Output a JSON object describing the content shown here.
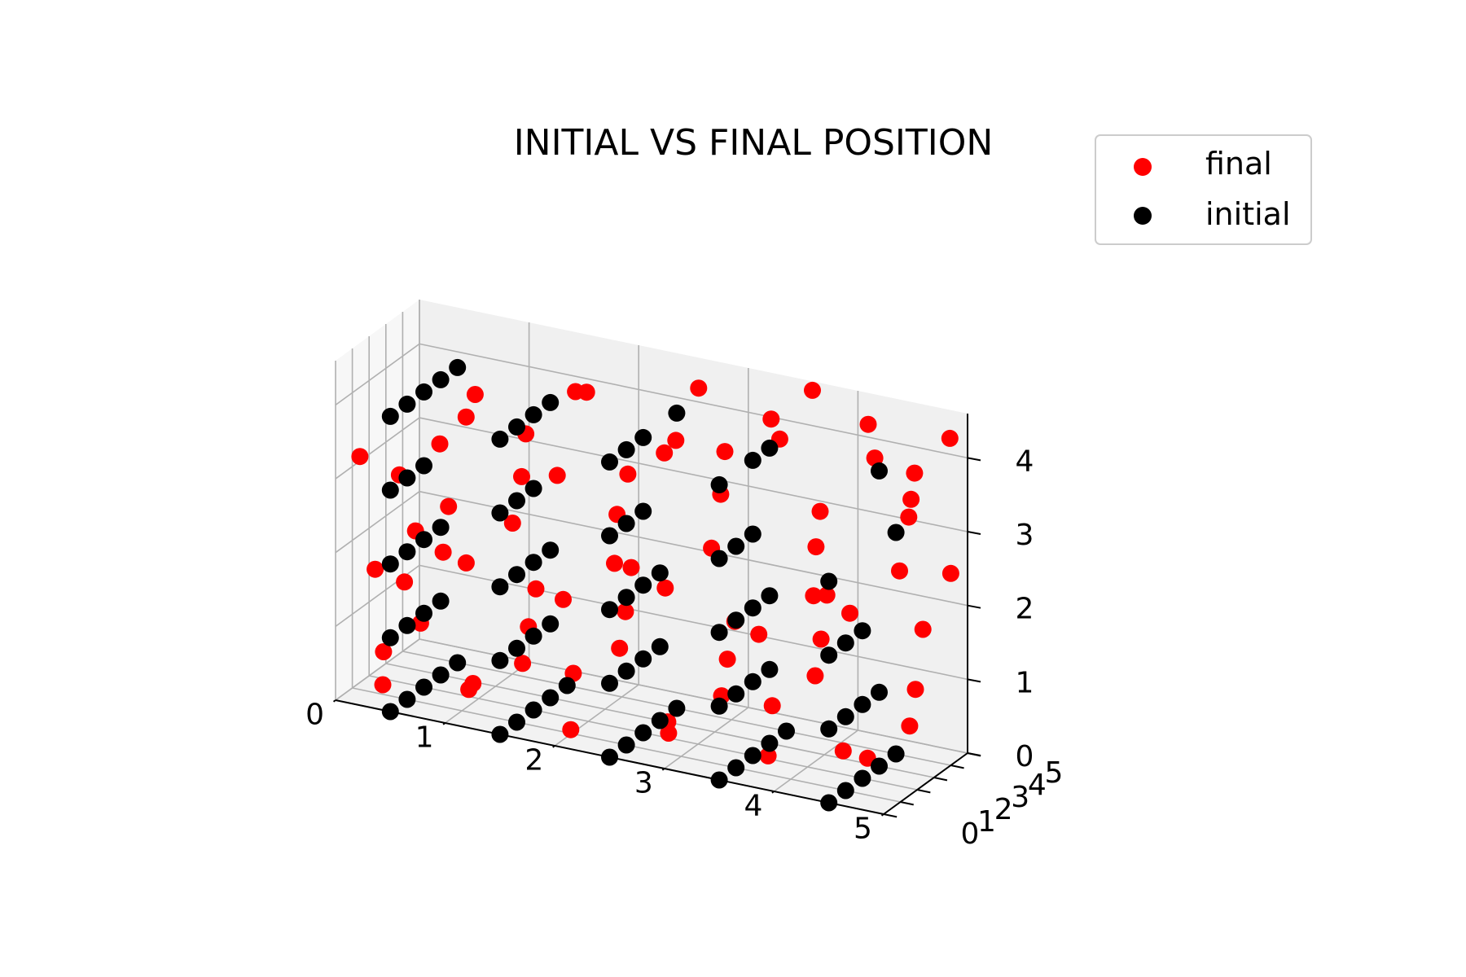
{
  "chart_data": {
    "type": "scatter",
    "dimensions": 3,
    "title": "INITIAL VS FINAL POSITION",
    "xlabel": "",
    "ylabel": "",
    "zlabel": "",
    "xlim": [
      0,
      5
    ],
    "ylim": [
      0,
      5
    ],
    "zlim": [
      0,
      4.6
    ],
    "x_ticks": [
      "0",
      "1",
      "2",
      "3",
      "4",
      "5"
    ],
    "y_ticks": [
      "0",
      "1",
      "2",
      "3",
      "4",
      "5"
    ],
    "z_ticks": [
      "0",
      "1",
      "2",
      "3",
      "4"
    ],
    "grid": true,
    "legend_position": "top-right",
    "series": [
      {
        "name": "final",
        "color": "#ff0000",
        "points": [
          [
            0.4,
            0.2,
            0.3
          ],
          [
            1.2,
            0.1,
            0.5
          ],
          [
            2.1,
            0.3,
            0.2
          ],
          [
            3.0,
            0.2,
            0.6
          ],
          [
            3.9,
            0.3,
            0.4
          ],
          [
            4.6,
            0.2,
            0.7
          ],
          [
            0.3,
            0.9,
            0.6
          ],
          [
            1.1,
            1.0,
            0.4
          ],
          [
            2.0,
            1.1,
            0.8
          ],
          [
            2.9,
            0.9,
            0.3
          ],
          [
            3.8,
            1.2,
            0.9
          ],
          [
            4.7,
            1.0,
            0.5
          ],
          [
            0.5,
            1.8,
            0.9
          ],
          [
            1.4,
            2.0,
            0.6
          ],
          [
            2.3,
            1.9,
            1.1
          ],
          [
            3.2,
            2.1,
            0.7
          ],
          [
            4.1,
            1.8,
            1.3
          ],
          [
            4.9,
            2.2,
            0.8
          ],
          [
            0.2,
            2.8,
            1.2
          ],
          [
            1.3,
            3.0,
            0.9
          ],
          [
            2.2,
            2.9,
            1.4
          ],
          [
            3.1,
            3.1,
            1.0
          ],
          [
            4.0,
            2.8,
            1.6
          ],
          [
            4.8,
            3.2,
            1.1
          ],
          [
            0.4,
            3.8,
            1.5
          ],
          [
            1.2,
            4.1,
            1.2
          ],
          [
            2.1,
            3.9,
            1.8
          ],
          [
            3.0,
            4.2,
            1.3
          ],
          [
            3.9,
            3.8,
            2.0
          ],
          [
            4.7,
            4.3,
            1.7
          ],
          [
            0.3,
            0.4,
            1.8
          ],
          [
            1.1,
            0.6,
            2.1
          ],
          [
            2.0,
            0.5,
            1.9
          ],
          [
            2.9,
            0.7,
            2.3
          ],
          [
            3.8,
            0.4,
            2.0
          ],
          [
            4.6,
            0.6,
            2.5
          ],
          [
            0.5,
            1.5,
            2.2
          ],
          [
            1.4,
            1.4,
            2.6
          ],
          [
            2.3,
            1.6,
            2.3
          ],
          [
            3.2,
            1.5,
            2.8
          ],
          [
            4.1,
            1.7,
            2.4
          ],
          [
            4.9,
            1.6,
            3.0
          ],
          [
            0.2,
            2.5,
            2.7
          ],
          [
            1.3,
            2.6,
            3.0
          ],
          [
            2.2,
            2.4,
            2.8
          ],
          [
            3.1,
            2.7,
            3.3
          ],
          [
            4.0,
            2.5,
            2.9
          ],
          [
            4.8,
            2.8,
            3.5
          ],
          [
            0.4,
            3.6,
            3.0
          ],
          [
            1.2,
            3.5,
            3.4
          ],
          [
            2.1,
            3.7,
            3.1
          ],
          [
            3.0,
            3.6,
            3.7
          ],
          [
            3.9,
            3.4,
            3.2
          ],
          [
            4.7,
            3.8,
            3.9
          ],
          [
            0.6,
            4.4,
            3.6
          ],
          [
            1.5,
            4.5,
            3.9
          ],
          [
            2.4,
            4.6,
            3.5
          ],
          [
            3.3,
            4.4,
            4.1
          ],
          [
            4.2,
            4.7,
            3.8
          ],
          [
            4.9,
            4.6,
            4.3
          ],
          [
            0.1,
            0.8,
            3.2
          ],
          [
            0.9,
            1.9,
            3.8
          ],
          [
            1.8,
            3.2,
            4.2
          ],
          [
            2.7,
            4.0,
            4.4
          ],
          [
            3.6,
            4.9,
            4.5
          ],
          [
            4.5,
            4.9,
            3.3
          ],
          [
            1.0,
            0.2,
            2.9
          ],
          [
            1.9,
            0.8,
            3.5
          ],
          [
            2.8,
            1.3,
            4.0
          ],
          [
            3.7,
            2.3,
            4.3
          ],
          [
            4.4,
            3.0,
            4.6
          ],
          [
            5.0,
            4.0,
            2.6
          ]
        ]
      },
      {
        "name": "initial",
        "color": "#000000",
        "points": [
          [
            0.5,
            0.0,
            0.0
          ],
          [
            1.5,
            0.0,
            0.0
          ],
          [
            2.5,
            0.0,
            0.0
          ],
          [
            3.5,
            0.0,
            0.0
          ],
          [
            4.5,
            0.0,
            0.0
          ],
          [
            0.5,
            1.0,
            0.0
          ],
          [
            1.5,
            1.0,
            0.0
          ],
          [
            2.5,
            1.0,
            0.0
          ],
          [
            3.5,
            1.0,
            0.0
          ],
          [
            4.5,
            1.0,
            0.0
          ],
          [
            0.5,
            2.0,
            0.0
          ],
          [
            1.5,
            2.0,
            0.0
          ],
          [
            2.5,
            2.0,
            0.0
          ],
          [
            3.5,
            2.0,
            0.0
          ],
          [
            4.5,
            2.0,
            0.0
          ],
          [
            0.5,
            3.0,
            0.0
          ],
          [
            1.5,
            3.0,
            0.0
          ],
          [
            2.5,
            3.0,
            0.0
          ],
          [
            3.5,
            3.0,
            0.0
          ],
          [
            4.5,
            3.0,
            0.0
          ],
          [
            0.5,
            4.0,
            0.0
          ],
          [
            1.5,
            4.0,
            0.0
          ],
          [
            2.5,
            4.0,
            0.0
          ],
          [
            3.5,
            4.0,
            0.0
          ],
          [
            4.5,
            4.0,
            0.0
          ],
          [
            0.5,
            0.0,
            1.0
          ],
          [
            1.5,
            0.0,
            1.0
          ],
          [
            2.5,
            0.0,
            1.0
          ],
          [
            3.5,
            0.0,
            1.0
          ],
          [
            4.5,
            0.0,
            1.0
          ],
          [
            0.5,
            1.0,
            1.0
          ],
          [
            1.5,
            1.0,
            1.0
          ],
          [
            2.5,
            1.0,
            1.0
          ],
          [
            3.5,
            1.0,
            1.0
          ],
          [
            4.5,
            1.0,
            1.0
          ],
          [
            0.5,
            2.0,
            1.0
          ],
          [
            1.5,
            2.0,
            1.0
          ],
          [
            2.5,
            2.0,
            1.0
          ],
          [
            3.5,
            2.0,
            1.0
          ],
          [
            4.5,
            2.0,
            1.0
          ],
          [
            0.5,
            3.0,
            1.0
          ],
          [
            1.5,
            3.0,
            1.0
          ],
          [
            2.5,
            3.0,
            1.0
          ],
          [
            3.5,
            3.0,
            1.0
          ],
          [
            4.5,
            3.0,
            1.0
          ],
          [
            0.5,
            0.0,
            2.0
          ],
          [
            1.5,
            0.0,
            2.0
          ],
          [
            2.5,
            0.0,
            2.0
          ],
          [
            3.5,
            0.0,
            2.0
          ],
          [
            4.5,
            0.0,
            2.0
          ],
          [
            0.5,
            1.0,
            2.0
          ],
          [
            1.5,
            1.0,
            2.0
          ],
          [
            2.5,
            1.0,
            2.0
          ],
          [
            3.5,
            1.0,
            2.0
          ],
          [
            4.5,
            1.0,
            2.0
          ],
          [
            0.5,
            2.0,
            2.0
          ],
          [
            1.5,
            2.0,
            2.0
          ],
          [
            2.5,
            2.0,
            2.0
          ],
          [
            3.5,
            2.0,
            2.0
          ],
          [
            4.5,
            2.0,
            2.0
          ],
          [
            0.5,
            3.0,
            2.0
          ],
          [
            1.5,
            3.0,
            2.0
          ],
          [
            2.5,
            3.0,
            2.0
          ],
          [
            3.5,
            3.0,
            2.0
          ],
          [
            0.5,
            0.0,
            3.0
          ],
          [
            1.5,
            0.0,
            3.0
          ],
          [
            2.5,
            0.0,
            3.0
          ],
          [
            3.5,
            0.0,
            3.0
          ],
          [
            4.5,
            0.0,
            3.0
          ],
          [
            0.5,
            1.0,
            3.0
          ],
          [
            1.5,
            1.0,
            3.0
          ],
          [
            2.5,
            1.0,
            3.0
          ],
          [
            3.5,
            1.0,
            3.0
          ],
          [
            0.5,
            2.0,
            3.0
          ],
          [
            1.5,
            2.0,
            3.0
          ],
          [
            2.5,
            2.0,
            3.0
          ],
          [
            3.5,
            2.0,
            3.0
          ],
          [
            0.5,
            0.0,
            4.0
          ],
          [
            1.5,
            0.0,
            4.0
          ],
          [
            2.5,
            0.0,
            4.0
          ],
          [
            3.5,
            0.0,
            4.0
          ],
          [
            0.5,
            1.0,
            4.0
          ],
          [
            1.5,
            1.0,
            4.0
          ],
          [
            2.5,
            1.0,
            4.0
          ],
          [
            0.5,
            2.0,
            4.0
          ],
          [
            1.5,
            2.0,
            4.0
          ],
          [
            2.5,
            2.0,
            4.0
          ],
          [
            3.5,
            2.0,
            4.0
          ],
          [
            0.5,
            3.0,
            4.0
          ],
          [
            1.5,
            3.0,
            4.0
          ],
          [
            3.5,
            3.0,
            4.0
          ],
          [
            4.5,
            3.0,
            4.0
          ],
          [
            0.5,
            4.0,
            4.0
          ],
          [
            2.5,
            4.0,
            4.0
          ],
          [
            4.5,
            4.0,
            3.0
          ]
        ]
      }
    ]
  }
}
